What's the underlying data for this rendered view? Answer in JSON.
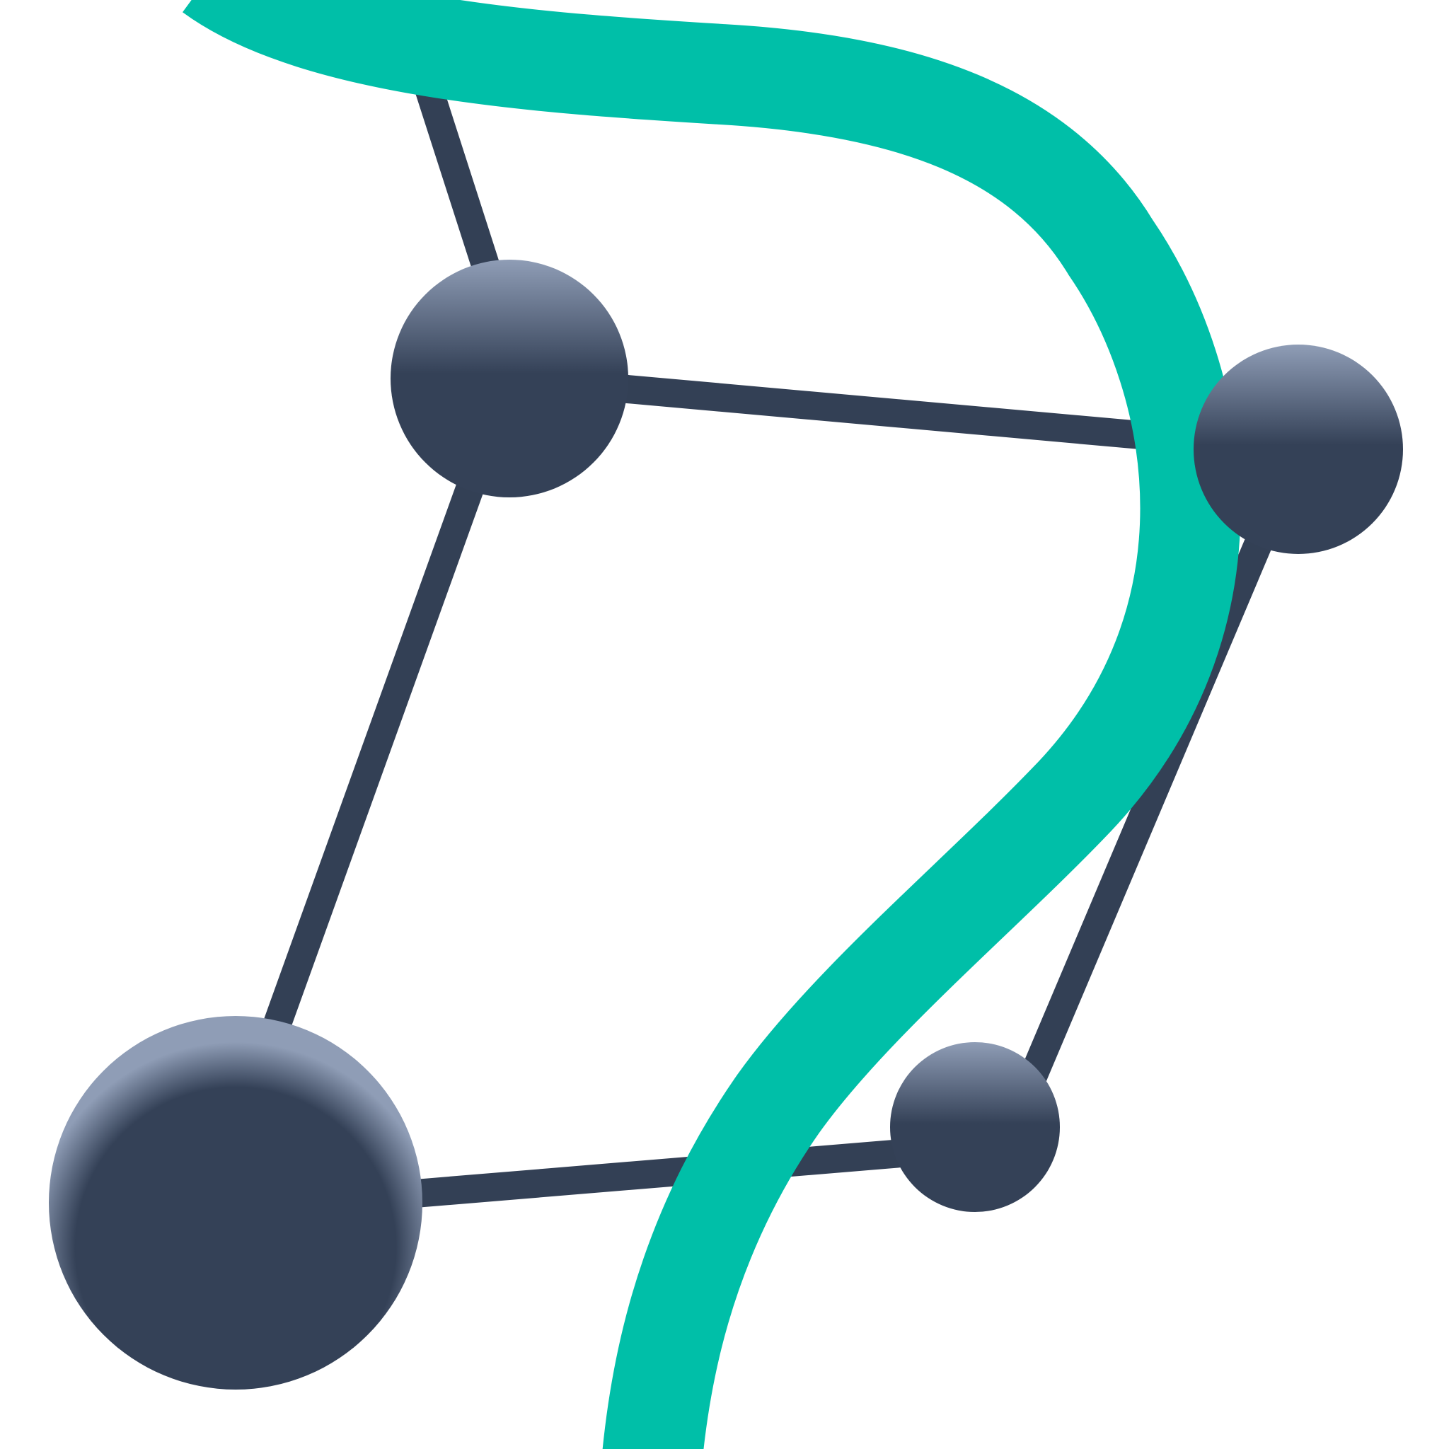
{
  "colors": {
    "background": "#ffffff",
    "edge": "#334055",
    "node_base": "#344157",
    "node_highlight": "#8f9db6",
    "accent_curve": "#00bfa8"
  },
  "icon": "network-question-mark-icon"
}
